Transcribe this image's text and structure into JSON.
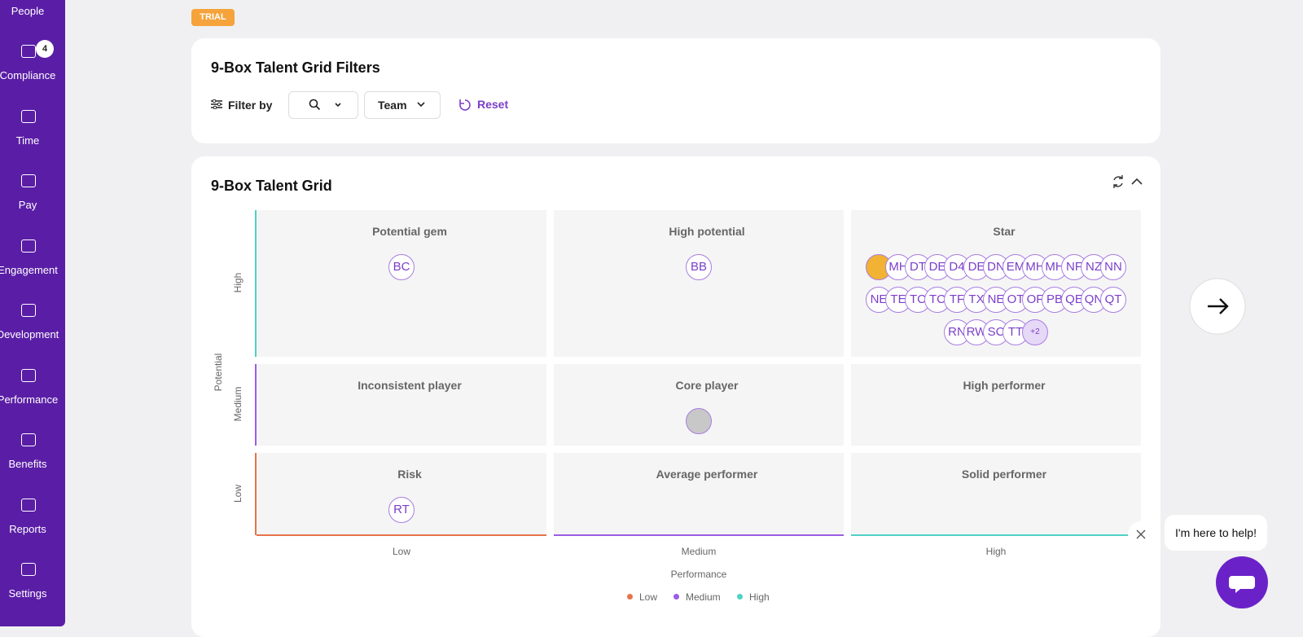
{
  "sidebar": {
    "items": [
      {
        "label": "People"
      },
      {
        "label": "Compliance",
        "badge": "4"
      },
      {
        "label": "Time"
      },
      {
        "label": "Pay"
      },
      {
        "label": "Engagement"
      },
      {
        "label": "Development"
      },
      {
        "label": "Performance"
      },
      {
        "label": "Benefits"
      },
      {
        "label": "Reports"
      },
      {
        "label": "Settings"
      }
    ]
  },
  "trial_badge": "TRIAL",
  "filters": {
    "title": "9-Box Talent Grid Filters",
    "filter_by": "Filter by",
    "team": "Team",
    "reset": "Reset"
  },
  "grid": {
    "title": "9-Box Talent Grid",
    "y_axis_label": "Potential",
    "x_axis_label": "Performance",
    "rows": [
      {
        "label": "High",
        "boxes": [
          {
            "label": "Potential gem",
            "members": [
              "BC"
            ]
          },
          {
            "label": "High potential",
            "members": [
              "BB"
            ]
          },
          {
            "label": "Star",
            "members": [
              "MH",
              "DT",
              "DE",
              "D4",
              "DE",
              "DN",
              "EM",
              "MH",
              "MH",
              "NF",
              "NZ",
              "NN",
              "NE",
              "TE",
              "TC",
              "TC",
              "TF",
              "TX",
              "NE",
              "OT",
              "OF",
              "PB",
              "QE",
              "QN",
              "QT",
              "RN",
              "RW",
              "SC",
              "TT",
              "+2"
            ]
          }
        ]
      },
      {
        "label": "Medium",
        "boxes": [
          {
            "label": "Inconsistent player",
            "members": []
          },
          {
            "label": "Core player",
            "members": []
          },
          {
            "label": "High performer",
            "members": []
          }
        ]
      },
      {
        "label": "Low",
        "boxes": [
          {
            "label": "Risk",
            "members": [
              "RT"
            ]
          },
          {
            "label": "Average performer",
            "members": []
          },
          {
            "label": "Solid performer",
            "members": []
          }
        ]
      }
    ],
    "columns": [
      "Low",
      "Medium",
      "High"
    ],
    "legend": [
      {
        "label": "Low",
        "color": "#e8734a"
      },
      {
        "label": "Medium",
        "color": "#9b5de5"
      },
      {
        "label": "High",
        "color": "#4fd1c5"
      }
    ]
  },
  "chat": {
    "message": "I'm here to help!"
  }
}
